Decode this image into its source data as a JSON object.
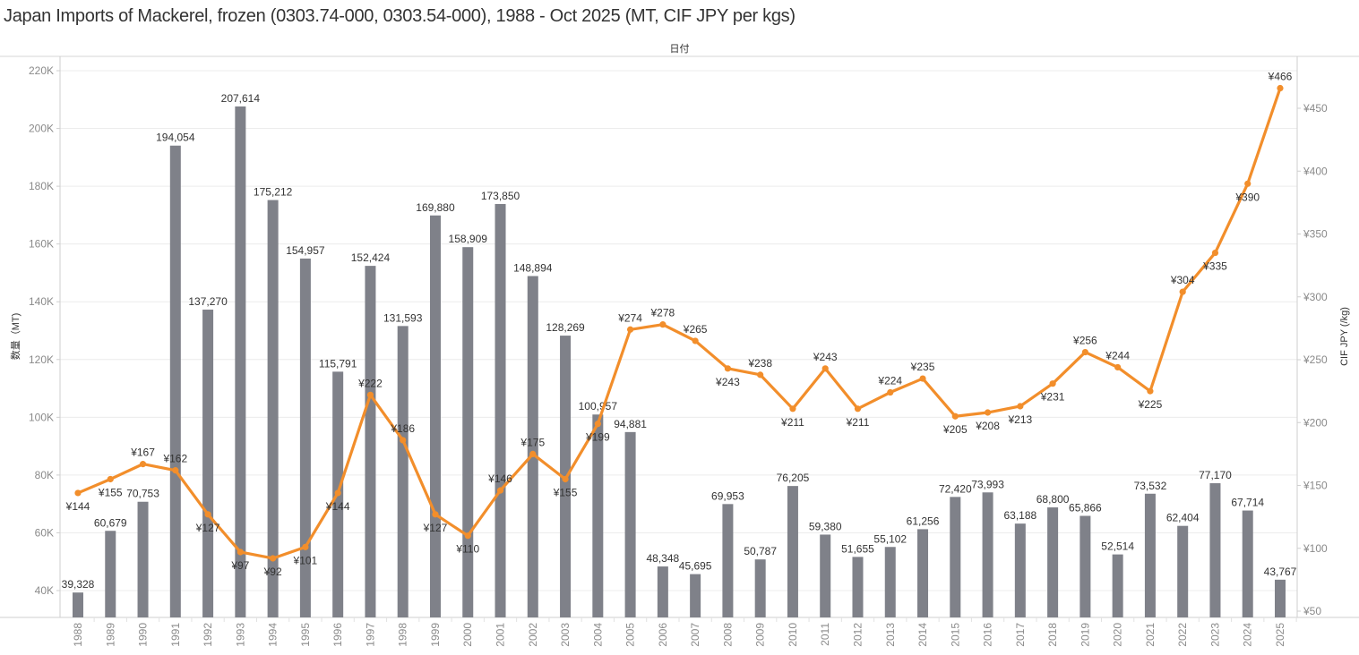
{
  "chart_data": {
    "type": "bar+line",
    "title": "Japan Imports of Mackerel, frozen (0303.74-000, 0303.54-000), 1988 - Oct 2025 (MT, CIF JPY per kgs)",
    "column_header": "日付",
    "categories": [
      "1988",
      "1989",
      "1990",
      "1991",
      "1992",
      "1993",
      "1994",
      "1995",
      "1996",
      "1997",
      "1998",
      "1999",
      "2000",
      "2001",
      "2002",
      "2003",
      "2004",
      "2005",
      "2006",
      "2007",
      "2008",
      "2009",
      "2010",
      "2011",
      "2012",
      "2013",
      "2014",
      "2015",
      "2016",
      "2017",
      "2018",
      "2019",
      "2020",
      "2021",
      "2022",
      "2023",
      "2024",
      "2025"
    ],
    "series": [
      {
        "name": "数量（MT)",
        "type": "bar",
        "axis": "left",
        "color": "#7f8189",
        "values": [
          39328,
          60679,
          70753,
          194054,
          137270,
          207614,
          175212,
          154957,
          115791,
          152424,
          131593,
          169880,
          158909,
          173850,
          148894,
          128269,
          100957,
          94881,
          48348,
          45695,
          69953,
          50787,
          76205,
          59380,
          51655,
          55102,
          61256,
          72420,
          73993,
          63188,
          68800,
          65866,
          52514,
          73532,
          62404,
          77170,
          67714,
          43767
        ],
        "labels": [
          "39,328",
          "60,679",
          "70,753",
          "194,054",
          "137,270",
          "207,614",
          "175,212",
          "154,957",
          "115,791",
          "152,424",
          "131,593",
          "169,880",
          "158,909",
          "173,850",
          "148,894",
          "128,269",
          "100,957",
          "94,881",
          "48,348",
          "45,695",
          "69,953",
          "50,787",
          "76,205",
          "59,380",
          "51,655",
          "55,102",
          "61,256",
          "72,420",
          "73,993",
          "63,188",
          "68,800",
          "65,866",
          "52,514",
          "73,532",
          "62,404",
          "77,170",
          "67,714",
          "43,767"
        ]
      },
      {
        "name": "CIF JPY (/kg)",
        "type": "line",
        "axis": "right",
        "color": "#f28e2b",
        "values": [
          144,
          155,
          167,
          162,
          127,
          97,
          92,
          101,
          144,
          222,
          186,
          127,
          110,
          146,
          175,
          155,
          199,
          274,
          278,
          265,
          243,
          238,
          211,
          243,
          211,
          224,
          235,
          205,
          208,
          213,
          231,
          256,
          244,
          225,
          304,
          335,
          390,
          466
        ],
        "labels": [
          "¥144",
          "¥155",
          "¥167",
          "¥162",
          "¥127",
          "¥97",
          "¥92",
          "¥101",
          "¥144",
          "¥222",
          "¥186",
          "¥127",
          "¥110",
          "¥146",
          "¥175",
          "¥155",
          "¥199",
          "¥274",
          "¥278",
          "¥265",
          "¥243",
          "¥238",
          "¥211",
          "¥243",
          "¥211",
          "¥224",
          "¥235",
          "¥205",
          "¥208",
          "¥213",
          "¥231",
          "¥256",
          "¥244",
          "¥225",
          "¥304",
          "¥335",
          "¥390",
          "¥466"
        ],
        "label_pos": [
          "below",
          "below",
          "above",
          "above",
          "below",
          "below",
          "below",
          "below",
          "below",
          "above",
          "above",
          "below",
          "below",
          "above",
          "above",
          "below",
          "below",
          "above",
          "above",
          "above",
          "below",
          "above",
          "below",
          "above",
          "below",
          "above",
          "above",
          "below",
          "below",
          "below",
          "below",
          "above",
          "above",
          "below",
          "above",
          "below",
          "below",
          "above"
        ]
      }
    ],
    "y_left": {
      "label": "数量（MT)",
      "range": [
        30700,
        220000
      ],
      "ticks": [
        40000,
        60000,
        80000,
        100000,
        120000,
        140000,
        160000,
        180000,
        200000,
        220000
      ],
      "tick_labels": [
        "40K",
        "60K",
        "80K",
        "100K",
        "120K",
        "140K",
        "160K",
        "180K",
        "200K",
        "220K"
      ]
    },
    "y_right": {
      "label": "CIF JPY (/kg)",
      "range": [
        45,
        480
      ],
      "ticks": [
        50,
        100,
        150,
        200,
        250,
        300,
        350,
        400,
        450
      ],
      "tick_labels": [
        "¥50",
        "¥100",
        "¥150",
        "¥200",
        "¥250",
        "¥300",
        "¥350",
        "¥400",
        "¥450"
      ]
    },
    "xlabel": "日付",
    "grid": true,
    "legend": "none"
  }
}
